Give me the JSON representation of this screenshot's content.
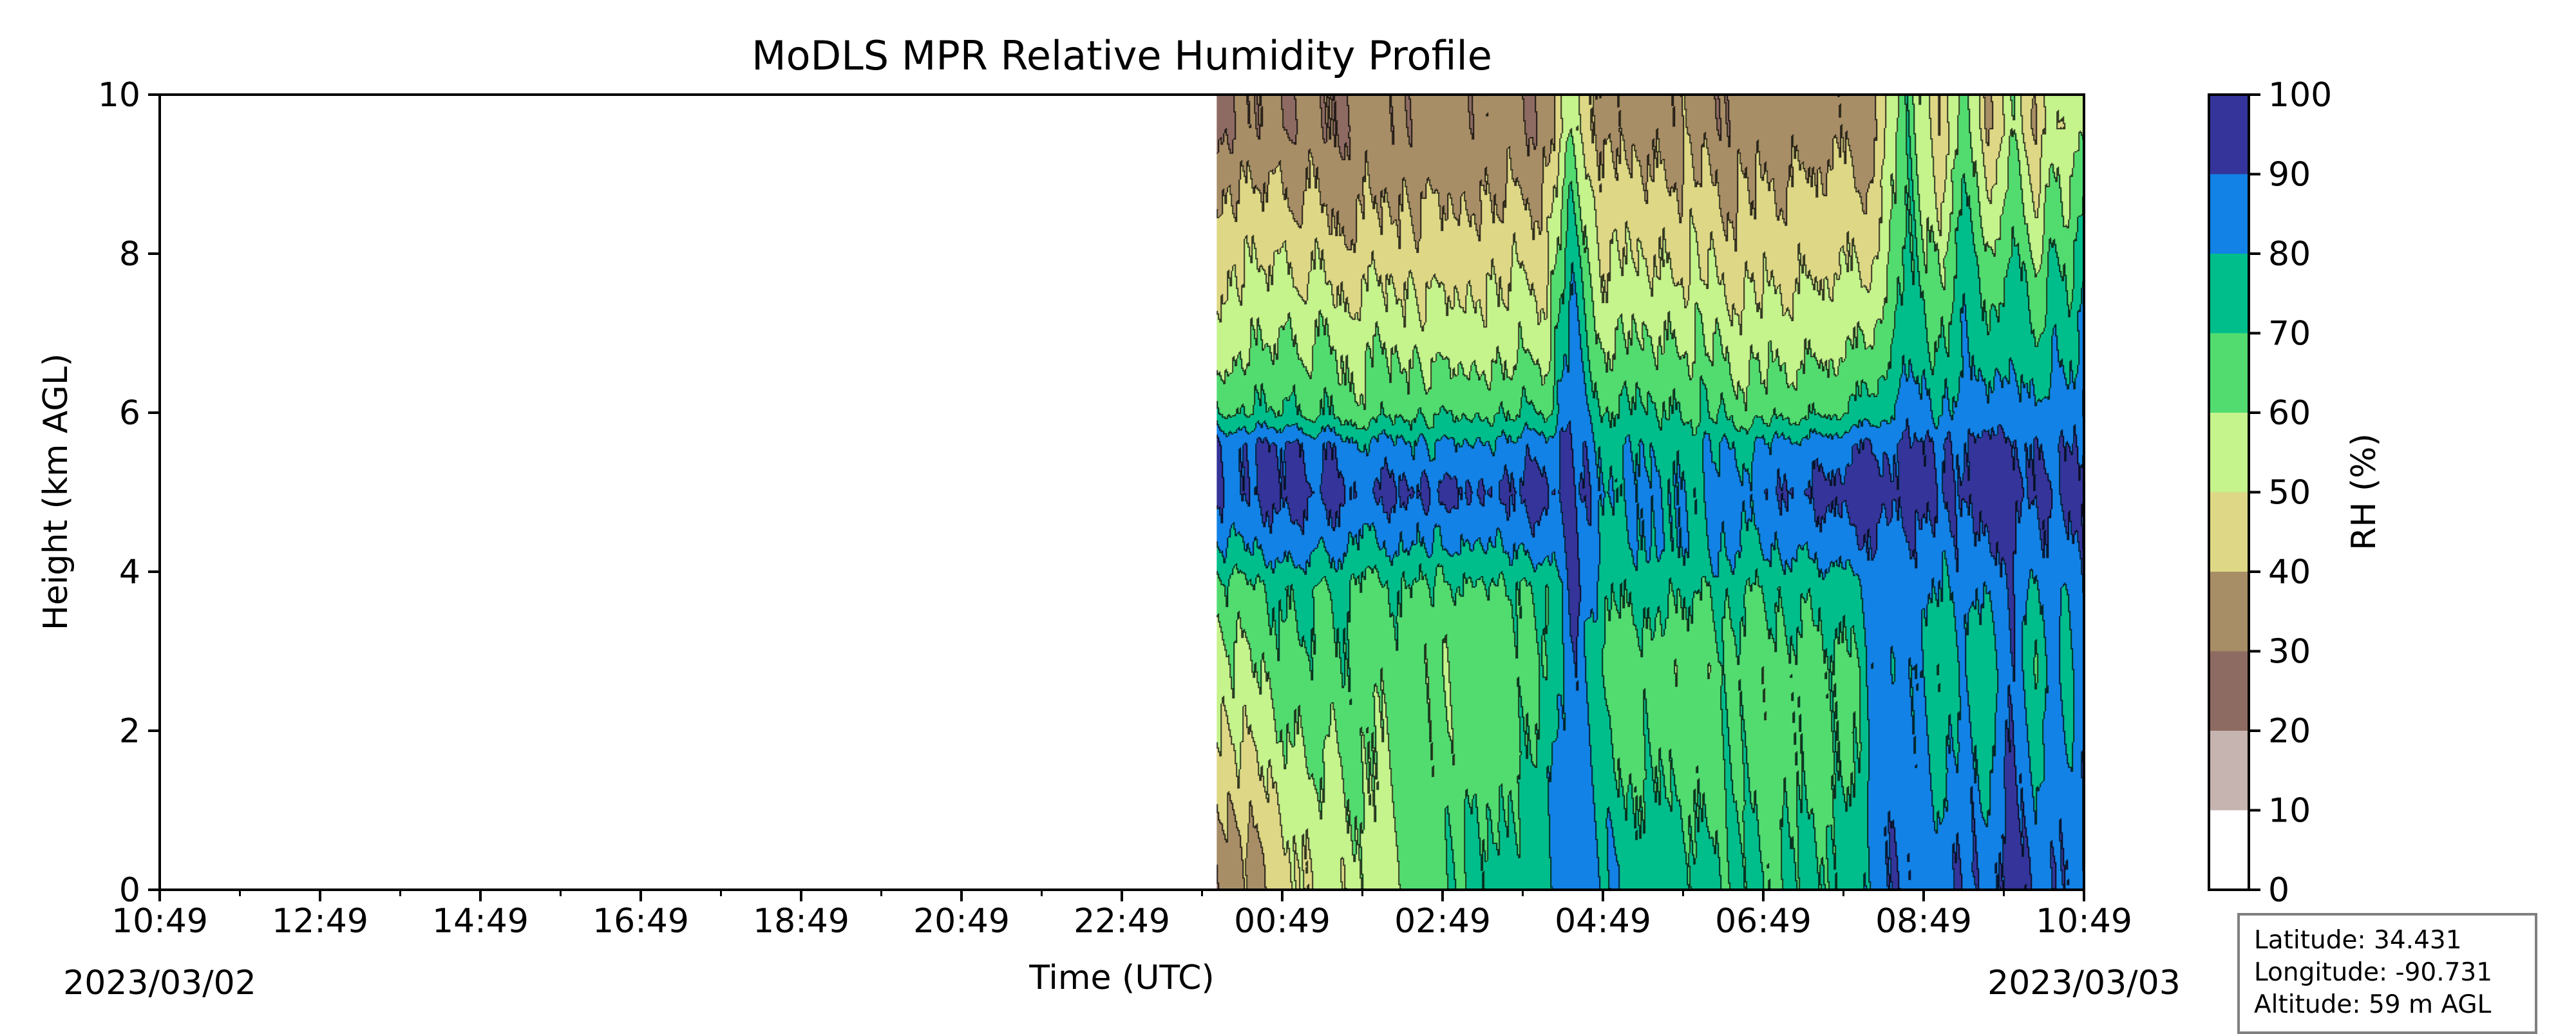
{
  "chart_data": {
    "type": "heatmap",
    "subtype": "filled-contour",
    "title": "MoDLS MPR Relative Humidity Profile",
    "xlabel": "Time (UTC)",
    "ylabel": "Height (km AGL)",
    "xlim": [
      "2023-03-02 10:49",
      "2023-03-03 10:49"
    ],
    "ylim": [
      0,
      10
    ],
    "x_ticks": [
      "10:49",
      "12:49",
      "14:49",
      "16:49",
      "18:49",
      "20:49",
      "22:49",
      "00:49",
      "02:49",
      "04:49",
      "06:49",
      "08:49",
      "10:49"
    ],
    "y_ticks": [
      "0",
      "2",
      "4",
      "6",
      "8",
      "10"
    ],
    "date_start": "2023/03/02",
    "date_end": "2023/03/03",
    "data_start": "2023-03-03 00:00",
    "colorbar": {
      "label": "RH (%)",
      "ticks": [
        "0",
        "10",
        "20",
        "30",
        "40",
        "50",
        "60",
        "70",
        "80",
        "90",
        "100"
      ],
      "levels": [
        0,
        10,
        20,
        30,
        40,
        50,
        60,
        70,
        80,
        90,
        100
      ],
      "colors": [
        "#ffffff",
        "#c6b4b0",
        "#8e6b62",
        "#a88e66",
        "#ded886",
        "#c5f38c",
        "#52dc70",
        "#00be8c",
        "#1282e6",
        "#34349a"
      ]
    },
    "grid": false,
    "legend": "none",
    "profile_time_hours": [
      13.2,
      14.0,
      15.0,
      16.0,
      16.8,
      17.3,
      17.6,
      18.0,
      19.0,
      20.0,
      21.0,
      21.2,
      21.3,
      21.8,
      22.2,
      22.5,
      22.8,
      23.1,
      23.4,
      23.6,
      23.8,
      24.0
    ],
    "profile_heights_km": [
      0.3,
      1.5,
      2.8,
      3.8,
      4.3,
      5.0,
      5.6,
      6.0,
      6.8,
      7.8,
      8.8,
      9.6
    ],
    "rh_profiles": [
      [
        32,
        45,
        57,
        68,
        80,
        92,
        91,
        72,
        58,
        50,
        40,
        28
      ],
      [
        45,
        54,
        64,
        70,
        82,
        91,
        88,
        68,
        59,
        48,
        38,
        30
      ],
      [
        55,
        62,
        66,
        70,
        80,
        92,
        84,
        66,
        60,
        48,
        38,
        34
      ],
      [
        70,
        66,
        64,
        69,
        81,
        93,
        82,
        70,
        58,
        48,
        40,
        35
      ],
      [
        75,
        70,
        66,
        72,
        82,
        93,
        84,
        70,
        58,
        50,
        40,
        34
      ],
      [
        78,
        76,
        68,
        70,
        85,
        95,
        88,
        72,
        60,
        50,
        42,
        33
      ],
      [
        90,
        92,
        92,
        95,
        95,
        96,
        93,
        90,
        86,
        80,
        70,
        60
      ],
      [
        82,
        74,
        68,
        76,
        80,
        84,
        81,
        73,
        62,
        52,
        44,
        37
      ],
      [
        73,
        67,
        63,
        72,
        80,
        80,
        76,
        70,
        61,
        50,
        42,
        35
      ],
      [
        72,
        67,
        66,
        73,
        81,
        88,
        82,
        66,
        57,
        47,
        40,
        34
      ],
      [
        72,
        66,
        66,
        73,
        83,
        92,
        84,
        67,
        56,
        47,
        40,
        34
      ],
      [
        75,
        70,
        68,
        75,
        86,
        93,
        86,
        70,
        58,
        47,
        40,
        34
      ],
      [
        80,
        78,
        76,
        80,
        85,
        93,
        88,
        72,
        60,
        48,
        40,
        34
      ],
      [
        90,
        88,
        84,
        88,
        90,
        94,
        92,
        86,
        78,
        72,
        70,
        68
      ],
      [
        84,
        74,
        70,
        77,
        83,
        91,
        88,
        78,
        68,
        58,
        46,
        40
      ],
      [
        90,
        86,
        80,
        85,
        88,
        92,
        90,
        84,
        80,
        76,
        70,
        62
      ],
      [
        85,
        76,
        70,
        78,
        86,
        91,
        90,
        80,
        70,
        60,
        48,
        40
      ],
      [
        92,
        90,
        88,
        90,
        92,
        95,
        93,
        88,
        82,
        76,
        68,
        60
      ],
      [
        86,
        80,
        72,
        80,
        86,
        92,
        90,
        82,
        72,
        62,
        50,
        42
      ],
      [
        93,
        88,
        86,
        90,
        92,
        94,
        92,
        88,
        82,
        74,
        64,
        56
      ],
      [
        88,
        84,
        78,
        82,
        88,
        92,
        90,
        84,
        76,
        68,
        58,
        50
      ],
      [
        94,
        90,
        88,
        90,
        92,
        94,
        93,
        90,
        84,
        76,
        66,
        58
      ]
    ]
  },
  "station_info": {
    "latitude": "Latitude: 34.431",
    "longitude": "Longitude: -90.731",
    "altitude": "Altitude: 59 m AGL"
  }
}
